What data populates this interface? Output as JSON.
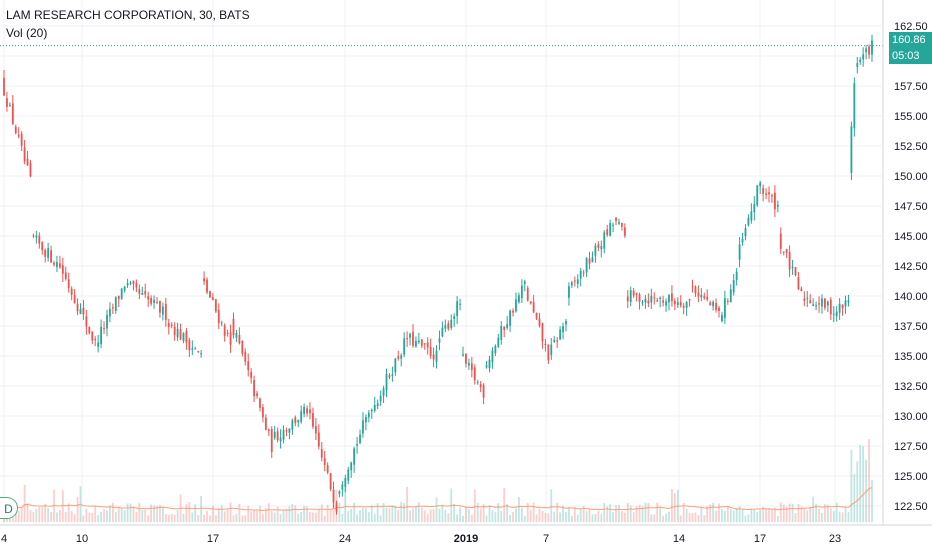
{
  "header": {
    "title": "LAM RESEARCH CORPORATION, 30, BATS",
    "volume_label": "Vol (20)"
  },
  "price_tags": {
    "last_price": "160.86",
    "countdown": "05:03"
  },
  "badge": "D",
  "colors": {
    "up": "#26a69a",
    "down": "#ef5350",
    "grid": "#eef1f4",
    "volume_ma": "#f7a17a"
  },
  "chart_data": {
    "type": "candlestick",
    "title": "LAM RESEARCH CORPORATION, 30, BATS",
    "ylim": [
      121.25,
      163.25
    ],
    "y_ticks": [
      "122.50",
      "125.00",
      "127.50",
      "130.00",
      "132.50",
      "135.00",
      "137.50",
      "140.00",
      "142.50",
      "145.00",
      "147.50",
      "150.00",
      "152.50",
      "155.00",
      "157.50",
      "160.00",
      "162.50"
    ],
    "x_ticks": [
      "4",
      "10",
      "17",
      "24",
      "2019",
      "7",
      "14",
      "17",
      "23"
    ],
    "last_price": 160.86,
    "series": [
      {
        "name": "Vol (20)",
        "note": "volume histogram with moving average"
      }
    ],
    "segments": [
      {
        "bars": 10,
        "start": 158.0,
        "end": 149.5
      },
      {
        "bars": 10,
        "start": 145.0,
        "end": 142.5
      },
      {
        "bars": 12,
        "start": 142.5,
        "end": 136.0
      },
      {
        "bars": 10,
        "start": 136.0,
        "end": 141.0
      },
      {
        "bars": 14,
        "start": 141.0,
        "end": 138.5
      },
      {
        "bars": 12,
        "start": 138.0,
        "end": 135.0
      },
      {
        "bars": 10,
        "start": 141.5,
        "end": 136.0
      },
      {
        "bars": 14,
        "start": 138.0,
        "end": 127.5
      },
      {
        "bars": 12,
        "start": 128.0,
        "end": 130.5
      },
      {
        "bars": 10,
        "start": 130.5,
        "end": 122.5
      },
      {
        "bars": 12,
        "start": 123.5,
        "end": 131.0
      },
      {
        "bars": 12,
        "start": 130.5,
        "end": 136.5
      },
      {
        "bars": 10,
        "start": 136.5,
        "end": 135.0
      },
      {
        "bars": 8,
        "start": 136.0,
        "end": 139.5
      },
      {
        "bars": 8,
        "start": 135.0,
        "end": 132.0
      },
      {
        "bars": 14,
        "start": 134.0,
        "end": 141.0
      },
      {
        "bars": 8,
        "start": 140.5,
        "end": 135.0
      },
      {
        "bars": 6,
        "start": 135.0,
        "end": 138.0
      },
      {
        "bars": 16,
        "start": 140.0,
        "end": 146.0
      },
      {
        "bars": 4,
        "start": 146.5,
        "end": 145.0
      },
      {
        "bars": 22,
        "start": 140.0,
        "end": 139.5
      },
      {
        "bars": 10,
        "start": 141.0,
        "end": 138.5
      },
      {
        "bars": 6,
        "start": 138.0,
        "end": 142.0
      },
      {
        "bars": 8,
        "start": 143.0,
        "end": 149.5
      },
      {
        "bars": 6,
        "start": 149.0,
        "end": 147.5
      },
      {
        "bars": 8,
        "start": 145.0,
        "end": 140.0
      },
      {
        "bars": 10,
        "start": 140.0,
        "end": 139.0
      },
      {
        "bars": 6,
        "start": 138.5,
        "end": 139.5
      },
      {
        "bars": 2,
        "start": 150.5,
        "end": 158.0
      },
      {
        "bars": 6,
        "start": 159.0,
        "end": 160.9
      }
    ]
  }
}
